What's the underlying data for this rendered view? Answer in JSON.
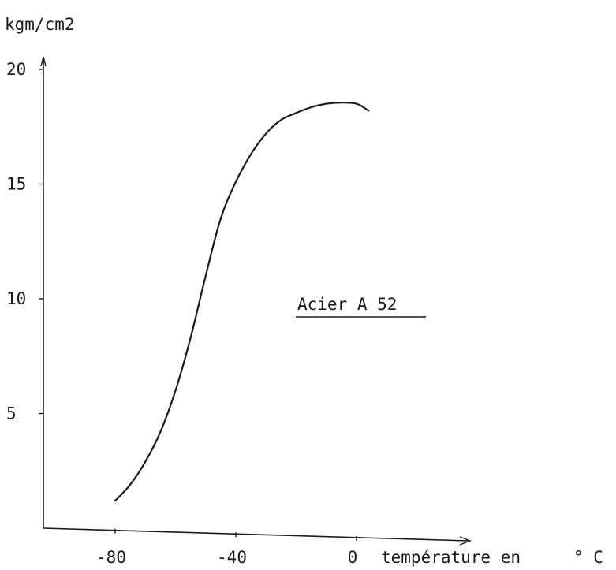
{
  "chart_data": {
    "type": "line",
    "title": "",
    "ylabel": "kgm/cm2",
    "xlabel": "température en",
    "xunit": "° C",
    "annotation": "Acier A 52",
    "xlim": [
      -95,
      20
    ],
    "ylim": [
      0,
      20
    ],
    "xticks": [
      -80,
      -40,
      0
    ],
    "xtick_labels": [
      "-80",
      "-40",
      "0"
    ],
    "yticks": [
      5,
      10,
      15,
      20
    ],
    "ytick_labels": [
      "5",
      "10",
      "15",
      "20"
    ],
    "grid": false,
    "legend": "none",
    "series": [
      {
        "x": [
          -80,
          -75,
          -70,
          -65,
          -60,
          -55,
          -50,
          -45,
          -40,
          -35,
          -30,
          -25,
          -20,
          -15,
          -10,
          -5,
          0,
          4
        ],
        "y": [
          1.2,
          1.9,
          2.9,
          4.2,
          6.0,
          8.3,
          11.0,
          13.5,
          15.1,
          16.3,
          17.2,
          17.8,
          18.1,
          18.35,
          18.5,
          18.55,
          18.5,
          18.2
        ]
      }
    ],
    "colors": {
      "ink": "#1a1a1a",
      "background": "#ffffff"
    }
  }
}
